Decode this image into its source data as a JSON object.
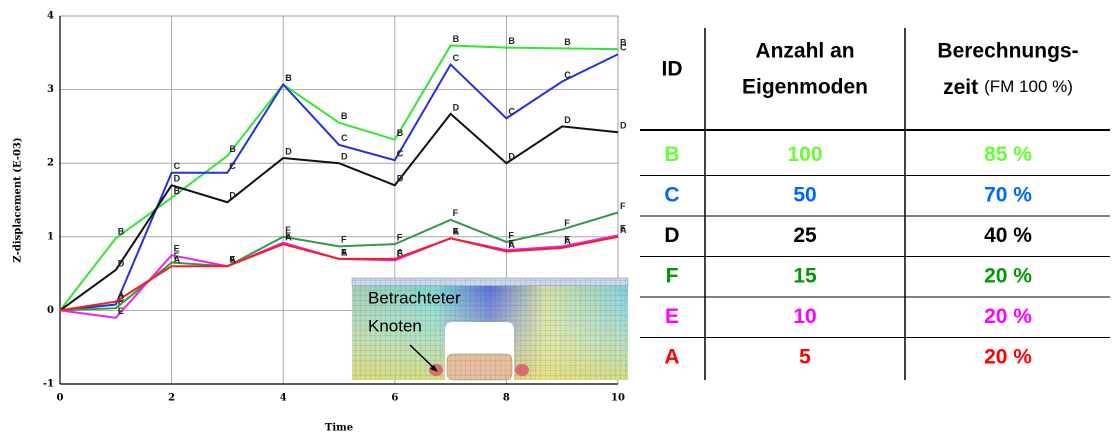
{
  "chart_data": {
    "type": "line",
    "x_label": "Time",
    "y_label": "Z-displacement (E-03)",
    "x": [
      0,
      1,
      2,
      3,
      4,
      5,
      6,
      7,
      8,
      9,
      10
    ],
    "xlim": [
      0,
      10
    ],
    "xticks": [
      0,
      2,
      4,
      6,
      8,
      10
    ],
    "ylim": [
      -1,
      4
    ],
    "yticks": [
      -1,
      0,
      1,
      2,
      3,
      4
    ],
    "grid": true,
    "series": [
      {
        "name": "B",
        "color": "#33e633",
        "values": [
          0,
          0.98,
          1.53,
          2.1,
          3.07,
          2.55,
          2.32,
          3.6,
          3.57,
          3.56,
          3.55
        ]
      },
      {
        "name": "C",
        "color": "#2233dd",
        "values": [
          0,
          0.08,
          1.87,
          1.87,
          3.07,
          2.25,
          2.04,
          3.34,
          2.61,
          3.11,
          3.48
        ]
      },
      {
        "name": "D",
        "color": "#111111",
        "values": [
          0,
          0.55,
          1.7,
          1.47,
          2.07,
          2.0,
          1.7,
          2.67,
          2.0,
          2.5,
          2.42
        ]
      },
      {
        "name": "F",
        "color": "#339944",
        "values": [
          0,
          0.03,
          0.65,
          0.6,
          1.0,
          0.87,
          0.9,
          1.23,
          0.93,
          1.1,
          1.33
        ]
      },
      {
        "name": "E",
        "color": "#ee22ee",
        "values": [
          0,
          -0.1,
          0.75,
          0.6,
          0.92,
          0.7,
          0.68,
          0.98,
          0.82,
          0.87,
          1.02
        ]
      },
      {
        "name": "A",
        "color": "#ee2222",
        "values": [
          0,
          0.12,
          0.6,
          0.6,
          0.9,
          0.7,
          0.7,
          0.98,
          0.8,
          0.85,
          1.0
        ]
      }
    ],
    "annotation": [
      "Betrachteter",
      "Knoten"
    ]
  },
  "table": {
    "header": [
      [
        "ID"
      ],
      [
        "Anzahl an",
        "Eigenmoden"
      ],
      [
        "Berechnungs-",
        "zeit",
        "(FM 100 %)"
      ]
    ],
    "rows": [
      {
        "color": "#66ff33",
        "cells": [
          "B",
          "100",
          "85 %"
        ]
      },
      {
        "color": "#0066ff",
        "cells": [
          "C",
          "50",
          "70 %"
        ]
      },
      {
        "color": "#000000",
        "cells": [
          "D",
          "25",
          "40 %"
        ]
      },
      {
        "color": "#009900",
        "cells": [
          "F",
          "15",
          "20 %"
        ]
      },
      {
        "color": "#ff00ff",
        "cells": [
          "E",
          "10",
          "20 %"
        ]
      },
      {
        "color": "#ff0000",
        "cells": [
          "A",
          "5",
          "20 %"
        ]
      }
    ]
  }
}
